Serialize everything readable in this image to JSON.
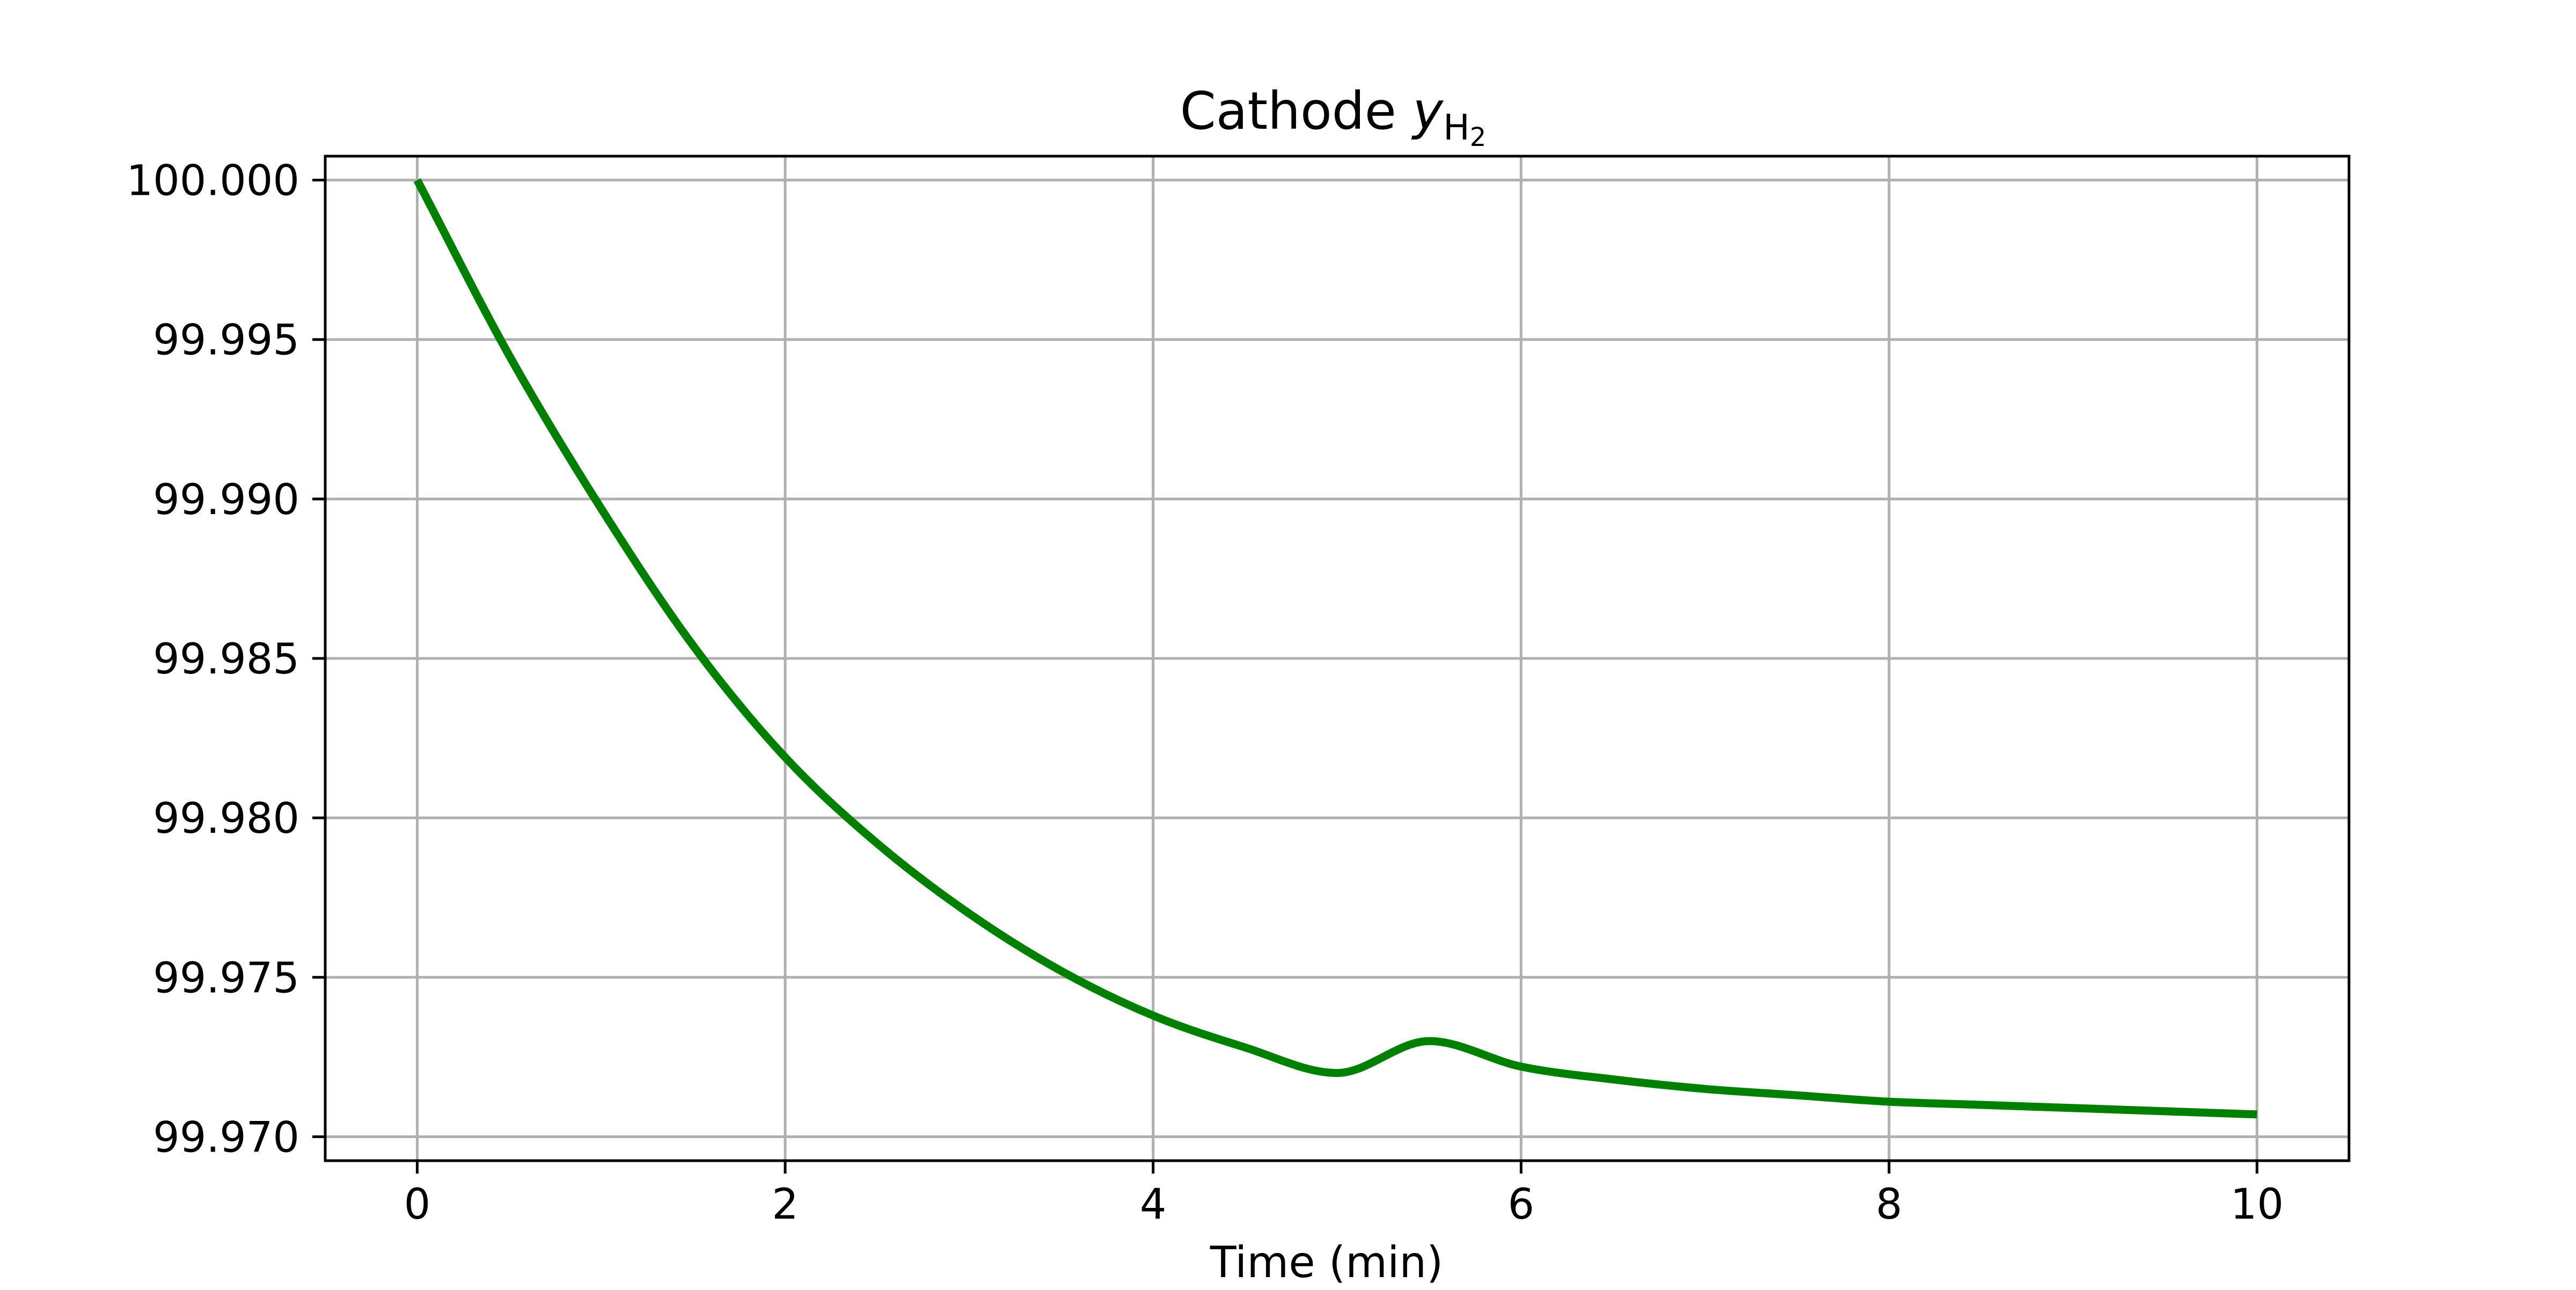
{
  "chart_data": {
    "type": "line",
    "title": "Cathode ",
    "title_symbol": "y",
    "title_sub": "H",
    "title_sub2": "2",
    "xlabel": "Time (min)",
    "ylabel": "",
    "xlim": [
      -0.5,
      10.5
    ],
    "ylim": [
      99.96925,
      100.00075
    ],
    "xticks": [
      0,
      2,
      4,
      6,
      8,
      10
    ],
    "xtick_labels": [
      "0",
      "2",
      "4",
      "6",
      "8",
      "10"
    ],
    "yticks": [
      99.97,
      99.975,
      99.98,
      99.985,
      99.99,
      99.995,
      100.0
    ],
    "ytick_labels": [
      "99.970",
      "99.975",
      "99.980",
      "99.985",
      "99.990",
      "99.995",
      "100.000"
    ],
    "grid": true,
    "series": [
      {
        "color": "#008000",
        "x": [
          0,
          0.5,
          1,
          1.5,
          2,
          2.5,
          3,
          3.5,
          4,
          4.5,
          5,
          5.5,
          6,
          6.5,
          7,
          7.5,
          8,
          8.5,
          9,
          9.5,
          10
        ],
        "y": [
          100.0,
          99.9945,
          99.9897,
          99.9854,
          99.9819,
          99.9792,
          99.977,
          99.9752,
          99.9738,
          99.9728,
          99.972,
          99.973,
          99.9722,
          99.9718,
          99.9715,
          99.9713,
          99.9711,
          99.971,
          99.9709,
          99.9708,
          99.9707
        ]
      }
    ]
  }
}
